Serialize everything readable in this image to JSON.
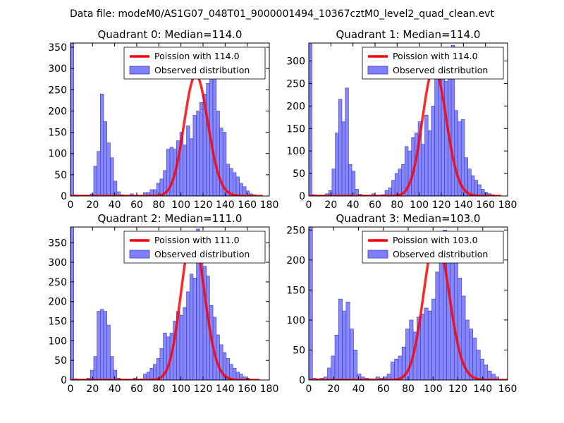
{
  "figure": {
    "suptitle": "Data file: modeM0/AS1G07_048T01_9000001494_10367cztM0_level2_quad_clean.evt"
  },
  "colors": {
    "bar_fill": "#8080ff",
    "bar_edge": "#3b3bb0",
    "poisson_line": "#ff0000",
    "axis": "#000000"
  },
  "chart_data": [
    {
      "type": "bar",
      "title": "Quadrant 0: Median=114.0",
      "xlim": [
        0,
        180
      ],
      "ylim": [
        0,
        360
      ],
      "xticks": [
        0,
        20,
        40,
        60,
        80,
        100,
        120,
        140,
        160,
        180
      ],
      "yticks": [
        0,
        50,
        100,
        150,
        200,
        250,
        300,
        350
      ],
      "legend": {
        "location": "upper-right",
        "line_label": "Poission with 114.0",
        "bar_label": "Observed distribution"
      },
      "poisson_mean": 114.0,
      "poisson_peak": 285,
      "bins": [
        [
          0,
          3,
          360
        ],
        [
          3,
          6,
          3
        ],
        [
          6,
          9,
          2
        ],
        [
          9,
          12,
          2
        ],
        [
          12,
          15,
          2
        ],
        [
          15,
          18,
          2
        ],
        [
          18,
          21,
          5
        ],
        [
          21,
          24,
          70
        ],
        [
          24,
          27,
          105
        ],
        [
          27,
          30,
          240
        ],
        [
          30,
          33,
          175
        ],
        [
          33,
          36,
          125
        ],
        [
          36,
          39,
          90
        ],
        [
          39,
          42,
          35
        ],
        [
          42,
          45,
          10
        ],
        [
          45,
          48,
          3
        ],
        [
          48,
          51,
          2
        ],
        [
          51,
          54,
          2
        ],
        [
          54,
          57,
          5
        ],
        [
          57,
          60,
          2
        ],
        [
          60,
          63,
          2
        ],
        [
          63,
          66,
          2
        ],
        [
          66,
          69,
          8
        ],
        [
          69,
          72,
          8
        ],
        [
          72,
          75,
          15
        ],
        [
          75,
          78,
          15
        ],
        [
          78,
          81,
          30
        ],
        [
          81,
          84,
          40
        ],
        [
          84,
          87,
          60
        ],
        [
          87,
          90,
          110
        ],
        [
          90,
          93,
          115
        ],
        [
          93,
          96,
          110
        ],
        [
          96,
          99,
          130
        ],
        [
          99,
          102,
          150
        ],
        [
          102,
          105,
          120
        ],
        [
          105,
          108,
          165
        ],
        [
          108,
          111,
          135
        ],
        [
          111,
          114,
          190
        ],
        [
          114,
          117,
          200
        ],
        [
          117,
          120,
          220
        ],
        [
          120,
          123,
          240
        ],
        [
          123,
          126,
          265
        ],
        [
          126,
          129,
          310
        ],
        [
          129,
          132,
          340
        ],
        [
          132,
          135,
          200
        ],
        [
          135,
          138,
          160
        ],
        [
          138,
          141,
          150
        ],
        [
          141,
          144,
          75
        ],
        [
          144,
          147,
          65
        ],
        [
          147,
          150,
          55
        ],
        [
          150,
          153,
          45
        ],
        [
          153,
          156,
          30
        ],
        [
          156,
          159,
          22
        ],
        [
          159,
          162,
          12
        ],
        [
          162,
          165,
          5
        ],
        [
          165,
          168,
          3
        ]
      ]
    },
    {
      "type": "bar",
      "title": "Quadrant 1: Median=114.0",
      "xlim": [
        0,
        180
      ],
      "ylim": [
        0,
        340
      ],
      "xticks": [
        0,
        20,
        40,
        60,
        80,
        100,
        120,
        140,
        160,
        180
      ],
      "yticks": [
        0,
        50,
        100,
        150,
        200,
        250,
        300
      ],
      "legend": {
        "location": "upper-right",
        "line_label": "Poission with 114.0",
        "bar_label": "Observed distribution"
      },
      "poisson_mean": 114.0,
      "poisson_peak": 285,
      "bins": [
        [
          0,
          3,
          340
        ],
        [
          3,
          6,
          3
        ],
        [
          6,
          9,
          2
        ],
        [
          9,
          12,
          2
        ],
        [
          12,
          15,
          2
        ],
        [
          15,
          18,
          5
        ],
        [
          18,
          21,
          12
        ],
        [
          21,
          24,
          60
        ],
        [
          24,
          27,
          140
        ],
        [
          27,
          30,
          215
        ],
        [
          30,
          33,
          165
        ],
        [
          33,
          36,
          240
        ],
        [
          36,
          39,
          70
        ],
        [
          39,
          42,
          55
        ],
        [
          42,
          45,
          15
        ],
        [
          45,
          48,
          4
        ],
        [
          48,
          51,
          2
        ],
        [
          51,
          54,
          2
        ],
        [
          54,
          57,
          2
        ],
        [
          57,
          60,
          5
        ],
        [
          60,
          63,
          2
        ],
        [
          63,
          66,
          2
        ],
        [
          66,
          69,
          3
        ],
        [
          69,
          72,
          12
        ],
        [
          72,
          75,
          18
        ],
        [
          75,
          78,
          35
        ],
        [
          78,
          81,
          50
        ],
        [
          81,
          84,
          60
        ],
        [
          84,
          87,
          70
        ],
        [
          87,
          90,
          110
        ],
        [
          90,
          93,
          100
        ],
        [
          93,
          96,
          130
        ],
        [
          96,
          99,
          140
        ],
        [
          99,
          102,
          165
        ],
        [
          102,
          105,
          115
        ],
        [
          105,
          108,
          180
        ],
        [
          108,
          111,
          145
        ],
        [
          111,
          114,
          200
        ],
        [
          114,
          117,
          280
        ],
        [
          117,
          120,
          290
        ],
        [
          120,
          123,
          270
        ],
        [
          123,
          126,
          255
        ],
        [
          126,
          129,
          300
        ],
        [
          129,
          132,
          335
        ],
        [
          132,
          135,
          190
        ],
        [
          135,
          138,
          165
        ],
        [
          138,
          141,
          170
        ],
        [
          141,
          144,
          85
        ],
        [
          144,
          147,
          60
        ],
        [
          147,
          150,
          45
        ],
        [
          150,
          153,
          35
        ],
        [
          153,
          156,
          25
        ],
        [
          156,
          159,
          15
        ],
        [
          159,
          162,
          8
        ],
        [
          162,
          165,
          5
        ],
        [
          165,
          168,
          3
        ]
      ]
    },
    {
      "type": "bar",
      "title": "Quadrant 2: Median=111.0",
      "xlim": [
        0,
        180
      ],
      "ylim": [
        0,
        390
      ],
      "xticks": [
        0,
        20,
        40,
        60,
        80,
        100,
        120,
        140,
        160,
        180
      ],
      "yticks": [
        0,
        50,
        100,
        150,
        200,
        250,
        300,
        350
      ],
      "legend": {
        "location": "upper-right",
        "line_label": "Poission with 111.0",
        "bar_label": "Observed distribution"
      },
      "poisson_mean": 111.0,
      "poisson_peak": 370,
      "bins": [
        [
          0,
          3,
          390
        ],
        [
          3,
          6,
          3
        ],
        [
          6,
          9,
          2
        ],
        [
          9,
          12,
          2
        ],
        [
          12,
          15,
          2
        ],
        [
          15,
          18,
          5
        ],
        [
          18,
          21,
          25
        ],
        [
          21,
          24,
          60
        ],
        [
          24,
          27,
          175
        ],
        [
          27,
          30,
          180
        ],
        [
          30,
          33,
          175
        ],
        [
          33,
          36,
          140
        ],
        [
          36,
          39,
          60
        ],
        [
          39,
          42,
          25
        ],
        [
          42,
          45,
          5
        ],
        [
          45,
          48,
          2
        ],
        [
          48,
          51,
          2
        ],
        [
          51,
          54,
          2
        ],
        [
          54,
          57,
          2
        ],
        [
          57,
          60,
          5
        ],
        [
          60,
          63,
          2
        ],
        [
          63,
          66,
          3
        ],
        [
          66,
          69,
          15
        ],
        [
          69,
          72,
          20
        ],
        [
          72,
          75,
          30
        ],
        [
          75,
          78,
          40
        ],
        [
          78,
          81,
          55
        ],
        [
          81,
          84,
          80
        ],
        [
          84,
          87,
          120
        ],
        [
          87,
          90,
          110
        ],
        [
          90,
          93,
          120
        ],
        [
          93,
          96,
          150
        ],
        [
          96,
          99,
          175
        ],
        [
          99,
          102,
          165
        ],
        [
          102,
          105,
          185
        ],
        [
          105,
          108,
          225
        ],
        [
          108,
          111,
          270
        ],
        [
          111,
          114,
          260
        ],
        [
          114,
          117,
          385
        ],
        [
          117,
          120,
          365
        ],
        [
          120,
          123,
          290
        ],
        [
          123,
          126,
          265
        ],
        [
          126,
          129,
          190
        ],
        [
          129,
          132,
          160
        ],
        [
          132,
          135,
          115
        ],
        [
          135,
          138,
          90
        ],
        [
          138,
          141,
          70
        ],
        [
          141,
          144,
          55
        ],
        [
          144,
          147,
          40
        ],
        [
          147,
          150,
          30
        ],
        [
          150,
          153,
          20
        ],
        [
          153,
          156,
          15
        ],
        [
          156,
          159,
          8
        ],
        [
          159,
          162,
          5
        ]
      ]
    },
    {
      "type": "bar",
      "title": "Quadrant 3: Median=103.0",
      "xlim": [
        0,
        160
      ],
      "ylim": [
        0,
        255
      ],
      "xticks": [
        0,
        20,
        40,
        60,
        80,
        100,
        120,
        140,
        160
      ],
      "yticks": [
        0,
        50,
        100,
        150,
        200,
        250
      ],
      "legend": {
        "location": "upper-right",
        "line_label": "Poission with 103.0",
        "bar_label": "Observed distribution"
      },
      "poisson_mean": 103.0,
      "poisson_peak": 240,
      "bins": [
        [
          0,
          3,
          255
        ],
        [
          3,
          6,
          3
        ],
        [
          6,
          9,
          2
        ],
        [
          9,
          12,
          3
        ],
        [
          12,
          15,
          5
        ],
        [
          15,
          18,
          20
        ],
        [
          18,
          21,
          40
        ],
        [
          21,
          24,
          75
        ],
        [
          24,
          27,
          135
        ],
        [
          27,
          30,
          115
        ],
        [
          30,
          33,
          130
        ],
        [
          33,
          36,
          85
        ],
        [
          36,
          39,
          50
        ],
        [
          39,
          42,
          10
        ],
        [
          42,
          45,
          5
        ],
        [
          45,
          48,
          3
        ],
        [
          48,
          51,
          2
        ],
        [
          51,
          54,
          2
        ],
        [
          54,
          57,
          5
        ],
        [
          57,
          60,
          3
        ],
        [
          60,
          63,
          5
        ],
        [
          63,
          66,
          10
        ],
        [
          66,
          69,
          30
        ],
        [
          69,
          72,
          35
        ],
        [
          72,
          75,
          40
        ],
        [
          75,
          78,
          55
        ],
        [
          78,
          81,
          85
        ],
        [
          81,
          84,
          100
        ],
        [
          84,
          87,
          80
        ],
        [
          87,
          90,
          105
        ],
        [
          90,
          93,
          110
        ],
        [
          93,
          96,
          120
        ],
        [
          96,
          99,
          115
        ],
        [
          99,
          102,
          135
        ],
        [
          102,
          105,
          180
        ],
        [
          105,
          108,
          230
        ],
        [
          108,
          111,
          250
        ],
        [
          111,
          114,
          215
        ],
        [
          114,
          117,
          220
        ],
        [
          117,
          120,
          195
        ],
        [
          120,
          123,
          170
        ],
        [
          123,
          126,
          140
        ],
        [
          126,
          129,
          100
        ],
        [
          129,
          132,
          85
        ],
        [
          132,
          135,
          70
        ],
        [
          135,
          138,
          50
        ],
        [
          138,
          141,
          35
        ],
        [
          141,
          144,
          25
        ],
        [
          144,
          147,
          15
        ],
        [
          147,
          150,
          10
        ],
        [
          150,
          153,
          5
        ]
      ]
    }
  ]
}
